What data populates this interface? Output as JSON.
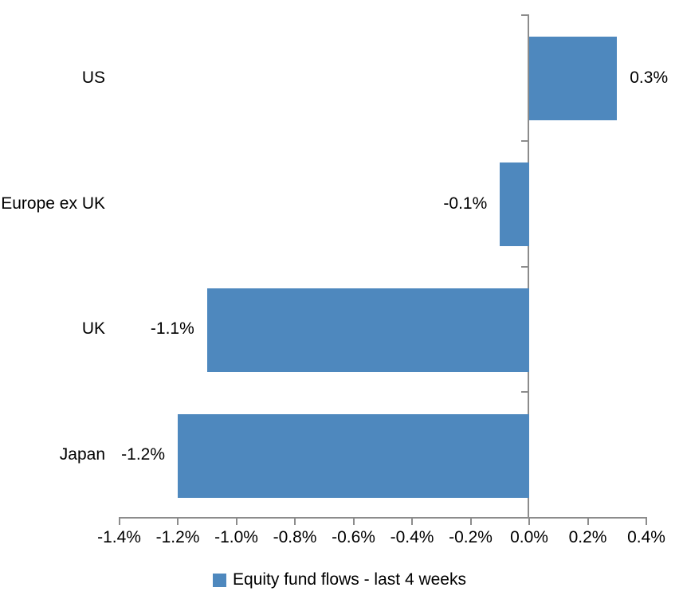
{
  "chart_data": {
    "type": "bar",
    "orientation": "horizontal",
    "title": "",
    "categories": [
      "US",
      "Europe ex UK",
      "UK",
      "Japan"
    ],
    "series": [
      {
        "name": "Equity fund flows - last 4 weeks",
        "values": [
          0.3,
          -0.1,
          -1.1,
          -1.2
        ],
        "data_labels": [
          "0.3%",
          "-0.1%",
          "-1.1%",
          "-1.2%"
        ]
      }
    ],
    "xlabel": "",
    "ylabel": "",
    "xlim": [
      -1.4,
      0.4
    ],
    "x_tick_values": [
      -1.4,
      -1.2,
      -1.0,
      -0.8,
      -0.6,
      -0.4,
      -0.2,
      0.0,
      0.2,
      0.4
    ],
    "x_tick_labels": [
      "-1.4%",
      "-1.2%",
      "-1.0%",
      "-0.8%",
      "-0.6%",
      "-0.4%",
      "-0.2%",
      "0.0%",
      "0.2%",
      "0.4%"
    ],
    "grid": false,
    "legend": {
      "position": "bottom",
      "label": "Equity fund flows - last 4 weeks"
    },
    "colors": {
      "bar": "#4E88BE",
      "axis": "#8C8C8C",
      "text": "#000000",
      "background": "#FFFFFF"
    }
  }
}
